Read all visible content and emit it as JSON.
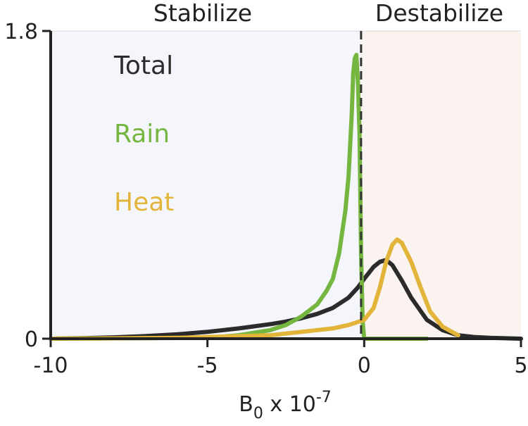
{
  "chart_data": {
    "type": "line",
    "xlim": [
      -10,
      5
    ],
    "ylim": [
      0,
      1.8
    ],
    "x_ticks": [
      -10,
      -5,
      0,
      5
    ],
    "x_tick_labels": [
      "-10",
      "-5",
      "0",
      "5"
    ],
    "y_ticks": [
      0,
      1.8
    ],
    "y_tick_labels": [
      "0",
      "1.8"
    ],
    "xlabel": {
      "base": "B",
      "sub": "0",
      "mid": " x 10",
      "sup": "-7"
    },
    "ylabel": "",
    "grid": false,
    "regions": [
      {
        "label": "Stabilize",
        "from": -10,
        "to": -0.1,
        "color": "#f4f6fb"
      },
      {
        "label": "Destabilize",
        "from": -0.1,
        "to": 5,
        "color": "#faf3ef"
      }
    ],
    "divider_x": -0.1,
    "legend_placement": "upper-left",
    "series": [
      {
        "name": "Total",
        "color": "#2b2b2b",
        "points": [
          [
            -10,
            0
          ],
          [
            -9,
            0.003
          ],
          [
            -8,
            0.008
          ],
          [
            -7,
            0.015
          ],
          [
            -6,
            0.025
          ],
          [
            -5,
            0.04
          ],
          [
            -4,
            0.06
          ],
          [
            -3,
            0.085
          ],
          [
            -2.5,
            0.1
          ],
          [
            -2,
            0.12
          ],
          [
            -1.5,
            0.145
          ],
          [
            -1,
            0.18
          ],
          [
            -0.5,
            0.24
          ],
          [
            -0.2,
            0.3
          ],
          [
            0,
            0.35
          ],
          [
            0.3,
            0.42
          ],
          [
            0.5,
            0.45
          ],
          [
            0.7,
            0.46
          ],
          [
            0.9,
            0.43
          ],
          [
            1.2,
            0.34
          ],
          [
            1.5,
            0.24
          ],
          [
            2,
            0.11
          ],
          [
            2.5,
            0.05
          ],
          [
            3,
            0.02
          ],
          [
            3.5,
            0.01
          ],
          [
            4,
            0.005
          ],
          [
            5,
            0
          ]
        ]
      },
      {
        "name": "Rain",
        "color": "#75b640",
        "points": [
          [
            -10,
            0
          ],
          [
            -5,
            0.005
          ],
          [
            -4,
            0.02
          ],
          [
            -3,
            0.05
          ],
          [
            -2.5,
            0.08
          ],
          [
            -2,
            0.13
          ],
          [
            -1.5,
            0.2
          ],
          [
            -1.2,
            0.28
          ],
          [
            -1,
            0.35
          ],
          [
            -0.8,
            0.5
          ],
          [
            -0.6,
            0.75
          ],
          [
            -0.5,
            0.95
          ],
          [
            -0.4,
            1.3
          ],
          [
            -0.35,
            1.55
          ],
          [
            -0.3,
            1.64
          ],
          [
            -0.25,
            1.66
          ],
          [
            -0.2,
            1.5
          ],
          [
            -0.15,
            1.2
          ],
          [
            -0.1,
            0.5
          ],
          [
            -0.05,
            0.1
          ],
          [
            0,
            0
          ],
          [
            2,
            0
          ]
        ]
      },
      {
        "name": "Heat",
        "color": "#e2b43a",
        "points": [
          [
            -10,
            0
          ],
          [
            -8,
            0.002
          ],
          [
            -6,
            0.005
          ],
          [
            -5,
            0.01
          ],
          [
            -4,
            0.015
          ],
          [
            -3,
            0.02
          ],
          [
            -2,
            0.04
          ],
          [
            -1,
            0.06
          ],
          [
            -0.5,
            0.08
          ],
          [
            0,
            0.11
          ],
          [
            0.3,
            0.18
          ],
          [
            0.5,
            0.3
          ],
          [
            0.7,
            0.45
          ],
          [
            0.9,
            0.55
          ],
          [
            1.05,
            0.58
          ],
          [
            1.2,
            0.56
          ],
          [
            1.5,
            0.45
          ],
          [
            1.8,
            0.3
          ],
          [
            2.1,
            0.16
          ],
          [
            2.5,
            0.07
          ],
          [
            3,
            0.02
          ]
        ]
      }
    ]
  }
}
